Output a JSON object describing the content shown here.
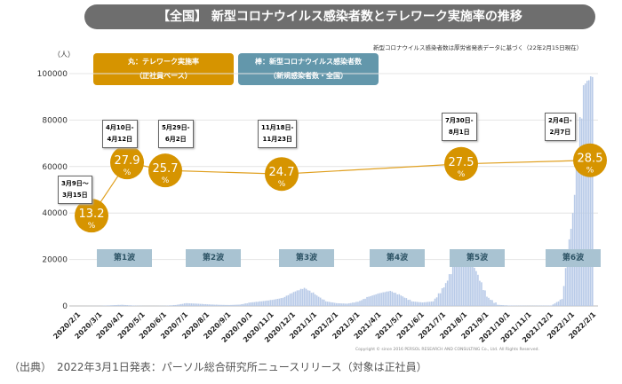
{
  "title": "【全国】 新型コロナウイルス感染者数とテレワーク実施率の推移",
  "note": "新型コロナウイルス感染者数は厚労省発表データに基づく（22年2月15日現在）",
  "legend": {
    "circle": [
      "丸：テレワーク実施率",
      "（正社員ベース）"
    ],
    "bar": [
      "棒：新型コロナウイルス感染者数",
      "（新規感染者数・全国）"
    ]
  },
  "source": "（出典）　2022年3月1日発表：パーソル総合研究所ニュースリリース（対象は正社員）",
  "copyright": "Copyright © since 2016 PERSOL RESEARCH AND CONSULTING Co., Ltd. All Rights Reserved.",
  "colors": {
    "bar": "#b9cbe8",
    "circle": "#d69400",
    "line": "#e0a020",
    "legend_bar": "#6397ab",
    "wave": "#a9c3d2"
  },
  "chart_data": {
    "type": "bar+line",
    "ylabel": "（人）",
    "ylim": [
      0,
      100000
    ],
    "yticks": [
      "0",
      "20000",
      "40000",
      "60000",
      "80000",
      "100000"
    ],
    "grid": true,
    "xticks": [
      "2020/2/1",
      "2020/3/1",
      "2020/4/1",
      "2020/5/1",
      "2020/6/1",
      "2020/7/1",
      "2020/8/1",
      "2020/9/1",
      "2020/10/1",
      "2020/11/1",
      "2020/12/1",
      "2021/1/1",
      "2021/2/1",
      "2021/3/1",
      "2021/4/1",
      "2021/5/1",
      "2021/6/1",
      "2021/7/1",
      "2021/8/1",
      "2021/9/1",
      "2021/10/1",
      "2021/11/1",
      "2021/12/1",
      "2022/1/1",
      "2022/2/1"
    ],
    "cases_semimonthly": [
      0,
      20,
      50,
      300,
      500,
      200,
      50,
      30,
      100,
      400,
      1200,
      1000,
      700,
      500,
      400,
      600,
      1500,
      2000,
      2600,
      3500,
      6000,
      7800,
      5000,
      2000,
      1200,
      1000,
      1800,
      4000,
      5500,
      6500,
      4500,
      2000,
      1500,
      2000,
      8000,
      18000,
      24000,
      15000,
      4000,
      500,
      200,
      150,
      100,
      150,
      200,
      3000,
      40000,
      95000,
      100000
    ],
    "telework": [
      {
        "month": "2020/3",
        "value": 13.2,
        "period": [
          "3月9日～",
          "3月15日"
        ]
      },
      {
        "month": "2020/4",
        "value": 27.9,
        "period": [
          "4月10日-",
          "4月12日"
        ]
      },
      {
        "month": "2020/5",
        "value": 25.7,
        "period": [
          "5月29日-",
          "6月2日"
        ]
      },
      {
        "month": "2020/11",
        "value": 24.7,
        "period": [
          "11月18日-",
          "11月23日"
        ]
      },
      {
        "month": "2021/7",
        "value": 27.5,
        "period": [
          "7月30日-",
          "8月1日"
        ]
      },
      {
        "month": "2022/2",
        "value": 28.5,
        "period": [
          "2月4日-",
          "2月7日"
        ]
      }
    ],
    "unit": "%",
    "waves": [
      "第1波",
      "第2波",
      "第3波",
      "第4波",
      "第5波",
      "第6波"
    ]
  }
}
